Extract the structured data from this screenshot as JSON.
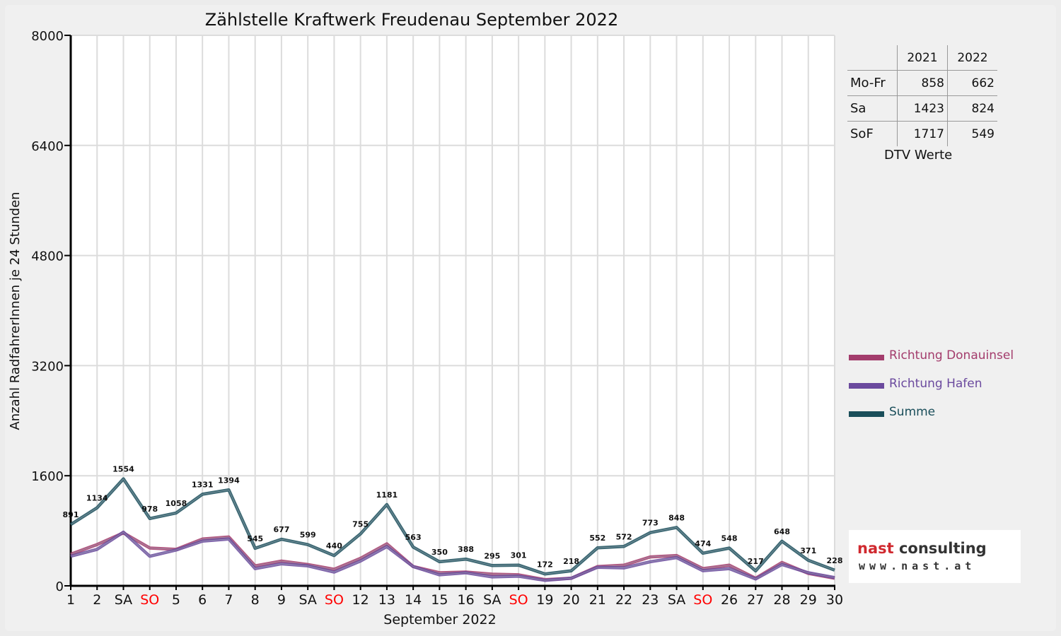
{
  "chart_data": {
    "type": "line",
    "title": "Zählstelle Kraftwerk Freudenau September 2022",
    "xlabel": "September 2022",
    "ylabel": "Anzahl RadfahrerInnen je 24 Stunden",
    "ylim": [
      0,
      8000
    ],
    "yticks": [
      "0",
      "1600",
      "3200",
      "4800",
      "6400",
      "8000"
    ],
    "grid": true,
    "legend_position": "right",
    "categories": [
      "1",
      "2",
      "SA",
      "SO",
      "5",
      "6",
      "7",
      "8",
      "9",
      "SA",
      "SO",
      "12",
      "13",
      "14",
      "15",
      "16",
      "SA",
      "SO",
      "19",
      "20",
      "21",
      "22",
      "23",
      "SA",
      "SO",
      "26",
      "27",
      "28",
      "29",
      "30"
    ],
    "weekend_color": "#ff0000",
    "series": [
      {
        "name": "Richtung Donauinsel",
        "color": "#a33c6c",
        "values": [
          460,
          600,
          770,
          550,
          530,
          680,
          710,
          290,
          360,
          310,
          240,
          400,
          610,
          280,
          190,
          200,
          170,
          160,
          90,
          110,
          280,
          300,
          420,
          440,
          250,
          300,
          110,
          340,
          180,
          110
        ]
      },
      {
        "name": "Richtung Hafen",
        "color": "#6b4a9e",
        "values": [
          430,
          530,
          780,
          430,
          520,
          650,
          680,
          250,
          320,
          290,
          200,
          360,
          570,
          280,
          160,
          190,
          130,
          140,
          80,
          110,
          270,
          260,
          350,
          410,
          220,
          250,
          100,
          310,
          190,
          120
        ]
      },
      {
        "name": "Summe",
        "color": "#1a4e5a",
        "values": [
          891,
          1134,
          1554,
          978,
          1058,
          1331,
          1394,
          545,
          677,
          599,
          440,
          755,
          1181,
          563,
          350,
          388,
          295,
          301,
          172,
          218,
          552,
          572,
          773,
          848,
          474,
          548,
          217,
          648,
          371,
          228
        ]
      }
    ],
    "data_labels": [
      "891",
      "1134",
      "1554",
      "978",
      "1058",
      "1331",
      "1394",
      "545",
      "677",
      "599",
      "440",
      "755",
      "1181",
      "563",
      "350",
      "388",
      "295",
      "301",
      "172",
      "218",
      "552",
      "572",
      "773",
      "848",
      "474",
      "548",
      "217",
      "648",
      "371",
      "228"
    ]
  },
  "dtv_table": {
    "caption": "DTV Werte",
    "headers": [
      "2021",
      "2022"
    ],
    "rows": [
      {
        "label": "Mo-Fr",
        "v2021": "858",
        "v2022": "662"
      },
      {
        "label": "Sa",
        "v2021": "1423",
        "v2022": "824"
      },
      {
        "label": "SoF",
        "v2021": "1717",
        "v2022": "549"
      }
    ]
  },
  "logo": {
    "brand_a": "nast",
    "brand_b": " consulting",
    "url": "www.nast.at"
  }
}
